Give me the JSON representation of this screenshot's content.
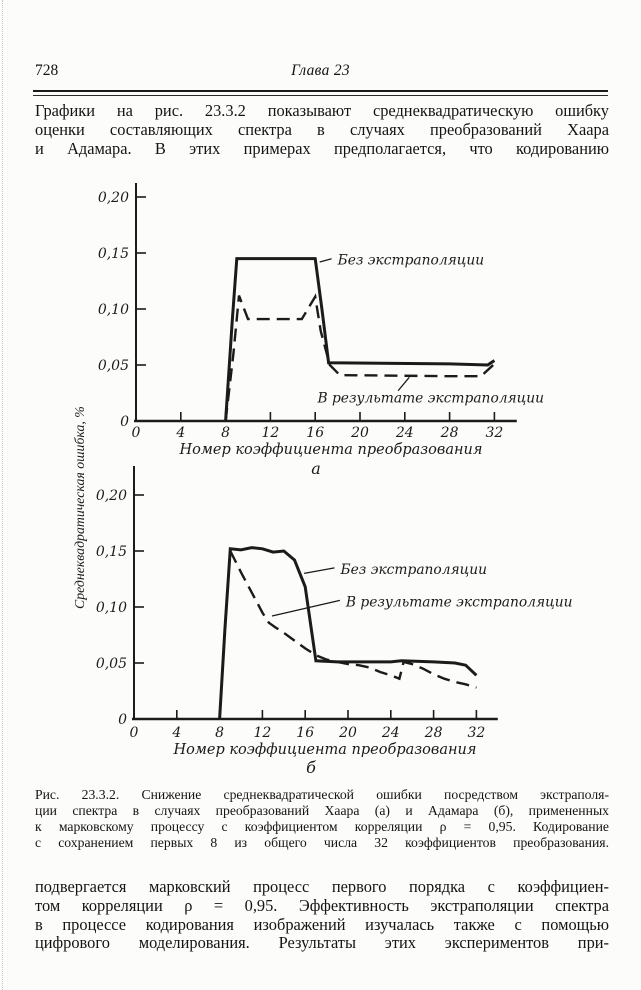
{
  "page": {
    "number": "728",
    "running_title": "Глава 23"
  },
  "intro_paragraph": {
    "lines": [
      "Графики на рис. 23.3.2 показывают среднеквадратическую ошибку",
      "оценки составляющих спектра в случаях преобразований Хаара",
      "и Адамара. В этих примерах предполагается, что кодированию"
    ]
  },
  "figure": {
    "ylabel": "Среднеквадратическая ошибка, %",
    "caption_lines": [
      "Рис. 23.3.2. Снижение среднеквадратической ошибки посредством экстраполя-",
      "ции спектра в случаях преобразований Хаара (а) и Адамара (б), примененных",
      "к марковскому процессу с коэффициентом корреляции ρ = 0,95. Кодирование",
      "с сохранением первых 8 из общего числа 32 коэффициентов преобразования."
    ]
  },
  "chart_data": [
    {
      "type": "line",
      "panel_label": "а",
      "xlabel": "Номер коэффициента преобразования",
      "ylabel": "Среднеквадратическая ошибка, %",
      "xlim": [
        0,
        34
      ],
      "ylim": [
        0,
        0.215
      ],
      "grid": false,
      "x_ticks": [
        0,
        4,
        8,
        12,
        16,
        20,
        24,
        28,
        32
      ],
      "y_ticks": [
        {
          "v": 0,
          "label": "0"
        },
        {
          "v": 0.05,
          "label": "0,05"
        },
        {
          "v": 0.1,
          "label": "0,10"
        },
        {
          "v": 0.15,
          "label": "0,15"
        },
        {
          "v": 0.2,
          "label": "0,20"
        }
      ],
      "series": [
        {
          "name": "Без экстраполяции",
          "style": "solid",
          "points": [
            [
              8,
              0
            ],
            [
              8.6,
              0.09
            ],
            [
              9,
              0.145
            ],
            [
              16,
              0.145
            ],
            [
              16.6,
              0.1
            ],
            [
              17.2,
              0.052
            ],
            [
              28,
              0.051
            ],
            [
              31.4,
              0.05
            ],
            [
              32,
              0.054
            ]
          ]
        },
        {
          "name": "В результате экстраполяции",
          "style": "dashed",
          "points": [
            [
              8,
              0
            ],
            [
              8.7,
              0.06
            ],
            [
              9.2,
              0.112
            ],
            [
              10,
              0.091
            ],
            [
              14.8,
              0.091
            ],
            [
              16,
              0.111
            ],
            [
              16.5,
              0.08
            ],
            [
              17.3,
              0.05
            ],
            [
              18.2,
              0.041
            ],
            [
              28,
              0.04
            ],
            [
              30.8,
              0.04
            ],
            [
              32,
              0.051
            ]
          ]
        }
      ],
      "annotations": [
        {
          "text": "Без экстраполяции",
          "tx": 18.0,
          "ty": 0.144,
          "ax": 16.4,
          "ay": 0.142
        },
        {
          "text": "В результате экстраполяции",
          "tx": 16.2,
          "ty": 0.021,
          "ax": 24.4,
          "ay": 0.039,
          "lx": 23.4,
          "ly": 0.027
        }
      ]
    },
    {
      "type": "line",
      "panel_label": "б",
      "xlabel": "Номер коэффициента преобразования",
      "ylabel": "Среднеквадратическая ошибка, %",
      "xlim": [
        0,
        34
      ],
      "ylim": [
        0,
        0.215
      ],
      "grid": false,
      "x_ticks": [
        0,
        4,
        8,
        12,
        16,
        20,
        24,
        28,
        32
      ],
      "y_ticks": [
        {
          "v": 0,
          "label": "0"
        },
        {
          "v": 0.05,
          "label": "0,05"
        },
        {
          "v": 0.1,
          "label": "0,10"
        },
        {
          "v": 0.15,
          "label": "0,15"
        },
        {
          "v": 0.2,
          "label": "0,20"
        }
      ],
      "series": [
        {
          "name": "Без экстраполяции",
          "style": "solid",
          "points": [
            [
              8,
              0
            ],
            [
              8.5,
              0.08
            ],
            [
              9,
              0.152
            ],
            [
              10,
              0.151
            ],
            [
              11,
              0.153
            ],
            [
              12,
              0.152
            ],
            [
              13,
              0.149
            ],
            [
              14,
              0.15
            ],
            [
              15,
              0.142
            ],
            [
              16,
              0.118
            ],
            [
              17,
              0.052
            ],
            [
              19,
              0.051
            ],
            [
              24,
              0.051
            ],
            [
              25,
              0.052
            ],
            [
              28,
              0.051
            ],
            [
              30,
              0.05
            ],
            [
              31,
              0.048
            ],
            [
              32,
              0.039
            ]
          ]
        },
        {
          "name": "В результате экстраполяции",
          "style": "dashed",
          "points": [
            [
              9,
              0.15
            ],
            [
              10,
              0.131
            ],
            [
              11,
              0.113
            ],
            [
              12,
              0.095
            ],
            [
              12.6,
              0.086
            ],
            [
              13.2,
              0.082
            ],
            [
              14,
              0.077
            ],
            [
              15,
              0.07
            ],
            [
              16,
              0.063
            ],
            [
              17,
              0.057
            ],
            [
              18,
              0.053
            ],
            [
              19,
              0.051
            ],
            [
              20,
              0.049
            ],
            [
              21,
              0.048
            ],
            [
              22,
              0.046
            ],
            [
              23,
              0.042
            ],
            [
              24,
              0.039
            ],
            [
              24.8,
              0.036
            ],
            [
              25.2,
              0.051
            ],
            [
              26,
              0.049
            ],
            [
              27,
              0.045
            ],
            [
              28,
              0.04
            ],
            [
              29,
              0.036
            ],
            [
              30,
              0.033
            ],
            [
              31,
              0.031
            ],
            [
              32,
              0.028
            ]
          ]
        }
      ],
      "annotations": [
        {
          "text": "Без экстраполяции",
          "tx": 19.3,
          "ty": 0.134,
          "ax": 15.9,
          "ay": 0.13
        },
        {
          "text": "В результате экстраполяции",
          "tx": 19.8,
          "ty": 0.105,
          "ax": 12.9,
          "ay": 0.092
        }
      ]
    }
  ],
  "closing_paragraph": {
    "lines": [
      "подвергается марковский процесс первого порядка с коэффициен-",
      "том корреляции ρ = 0,95. Эффективность экстраполяции спектра",
      "в процессе кодирования изображений изучалась также с помощью",
      "цифрового моделирования. Результаты этих экспериментов при-"
    ]
  }
}
